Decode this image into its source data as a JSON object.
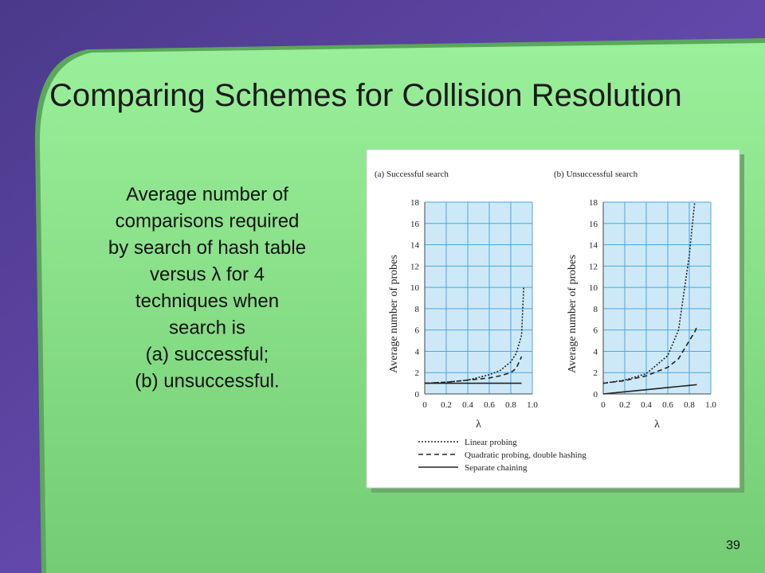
{
  "slide": {
    "title": "Comparing  Schemes for Collision Resolution",
    "body": [
      "Average number of",
      "comparisons required",
      "by search of hash table",
      "versus λ for 4",
      "techniques when",
      "search is",
      "(a) successful;",
      "(b) unsuccessful."
    ],
    "page_number": "39"
  },
  "chart_data": [
    {
      "type": "line",
      "title": "(a) Successful search",
      "x_label": "λ",
      "y_label": "Average number of probes",
      "x": [
        0,
        0.2,
        0.4,
        0.6,
        0.7,
        0.8,
        0.85,
        0.9,
        0.92
      ],
      "series": [
        {
          "name": "Linear probing",
          "color": "#222222",
          "style": "dotted",
          "values": [
            1,
            1.1,
            1.3,
            1.8,
            2.2,
            3,
            3.8,
            5.5,
            10
          ]
        },
        {
          "name": "Quadratic probing, double hashing",
          "color": "#222222",
          "style": "dashed",
          "values": [
            1,
            1.1,
            1.3,
            1.5,
            1.7,
            2,
            2.4,
            3.5,
            null
          ]
        },
        {
          "name": "Separate chaining",
          "color": "#222222",
          "style": "solid",
          "values": [
            1,
            1,
            1,
            1,
            1,
            1,
            1,
            1,
            null
          ]
        }
      ],
      "xlim": [
        0,
        1
      ],
      "xticks": [
        0,
        0.2,
        0.4,
        0.6,
        0.8,
        {
          "value": 1,
          "label": "1.0"
        }
      ],
      "ylim": [
        0,
        18
      ],
      "yticks": [
        0,
        2,
        4,
        6,
        8,
        10,
        12,
        14,
        16,
        18
      ],
      "grid": true
    },
    {
      "type": "line",
      "title": "(b) Unsuccessful search",
      "x_label": "λ",
      "y_label": "Average number of probes",
      "x": [
        0,
        0.2,
        0.4,
        0.6,
        0.7,
        0.8,
        0.85,
        0.87
      ],
      "series": [
        {
          "color": "#222222",
          "style": "dotted",
          "values": [
            1,
            1.3,
            1.9,
            3.6,
            6,
            13,
            18,
            null
          ]
        },
        {
          "color": "#222222",
          "style": "dashed",
          "values": [
            1,
            1.25,
            1.7,
            2.5,
            3.3,
            5,
            5.8,
            6.3
          ]
        },
        {
          "color": "#222222",
          "style": "solid",
          "values": [
            0,
            0.2,
            0.4,
            0.6,
            0.7,
            0.8,
            0.85,
            0.87
          ]
        }
      ],
      "xlim": [
        0,
        1
      ],
      "xticks": [
        0,
        0.2,
        0.4,
        0.6,
        0.8,
        {
          "value": 1,
          "label": "1.0"
        }
      ],
      "ylim": [
        0,
        18
      ],
      "yticks": [
        0,
        2,
        4,
        6,
        8,
        10,
        12,
        14,
        16,
        18
      ],
      "grid": true
    }
  ]
}
